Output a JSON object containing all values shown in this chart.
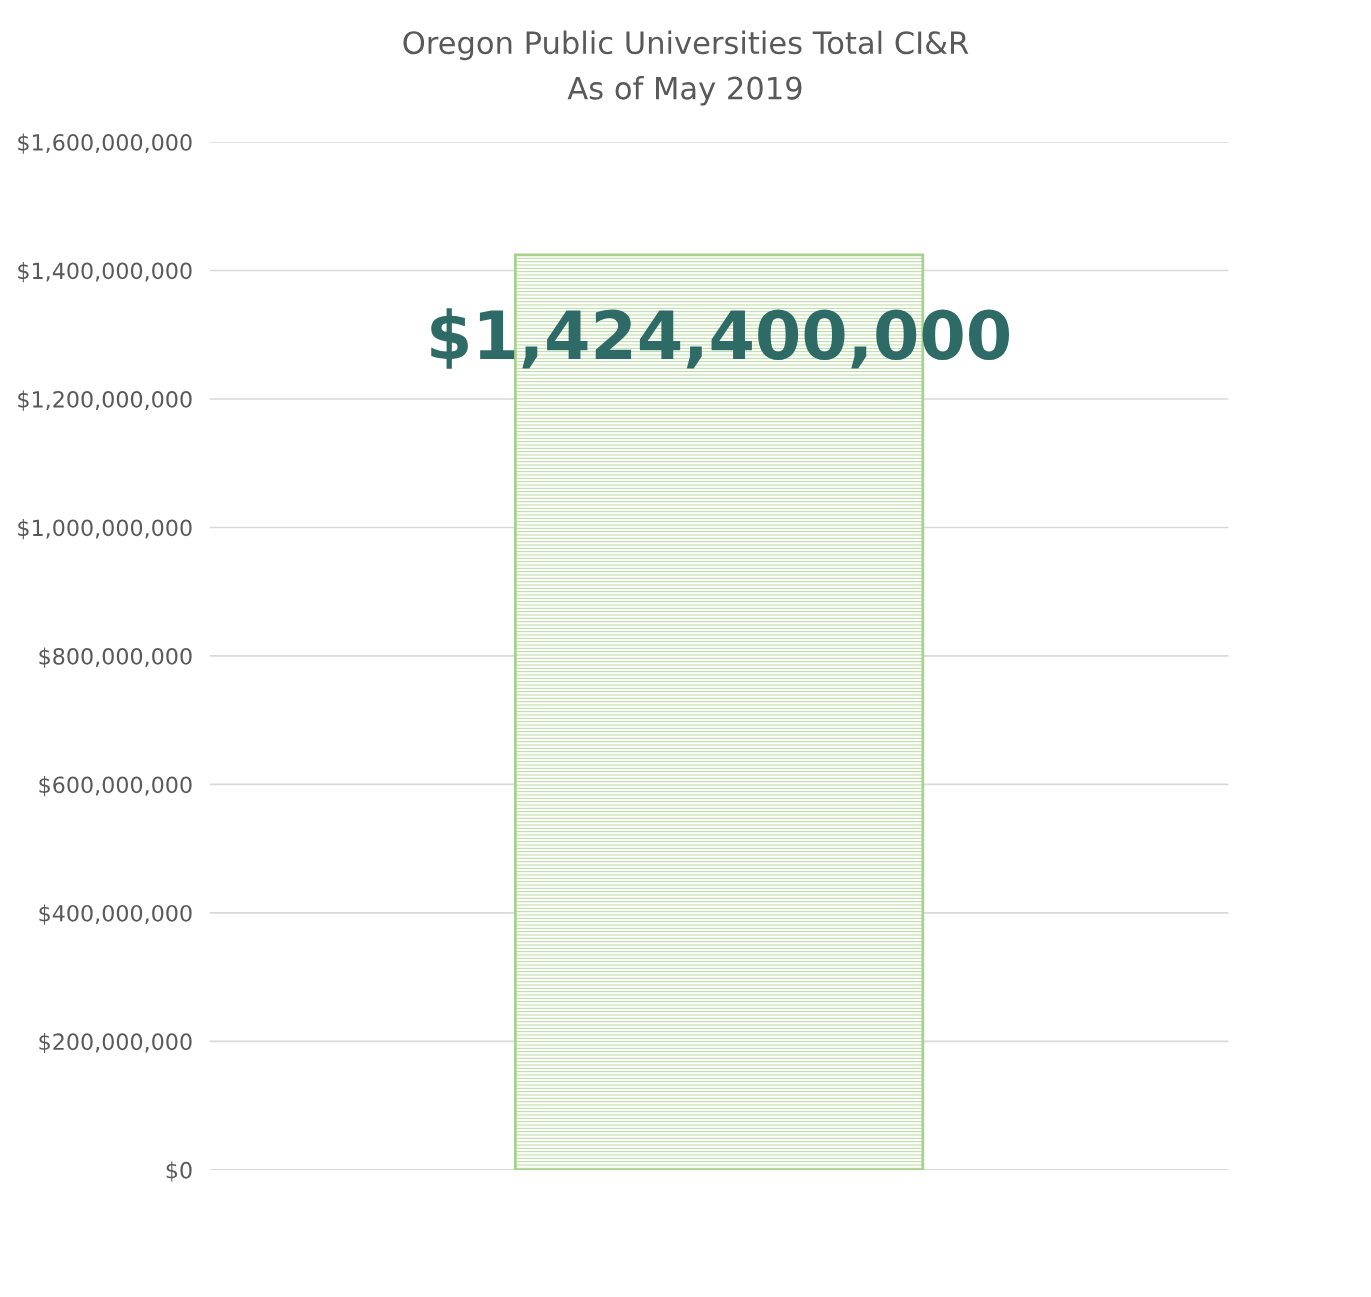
{
  "chart_data": {
    "type": "bar",
    "title": "Oregon Public Universities Total CI&R",
    "subtitle": "As of May 2019",
    "categories": [
      null
    ],
    "values": [
      1424400000
    ],
    "value_labels": [
      "$1,424,400,000"
    ],
    "color": "#a9d18e",
    "ylim": [
      0,
      1600000000
    ],
    "yticks": [
      {
        "value": 0,
        "label": "$0"
      },
      {
        "value": 200000000,
        "label": "$200,000,000"
      },
      {
        "value": 400000000,
        "label": "$400,000,000"
      },
      {
        "value": 600000000,
        "label": "$600,000,000"
      },
      {
        "value": 800000000,
        "label": "$800,000,000"
      },
      {
        "value": 1000000000,
        "label": "$1,000,000,000"
      },
      {
        "value": 1200000000,
        "label": "$1,200,000,000"
      },
      {
        "value": 1400000000,
        "label": "$1,400,000,000"
      },
      {
        "value": 1600000000,
        "label": "$1,600,000,000"
      }
    ],
    "grid": "y",
    "tick_labels": "y"
  }
}
